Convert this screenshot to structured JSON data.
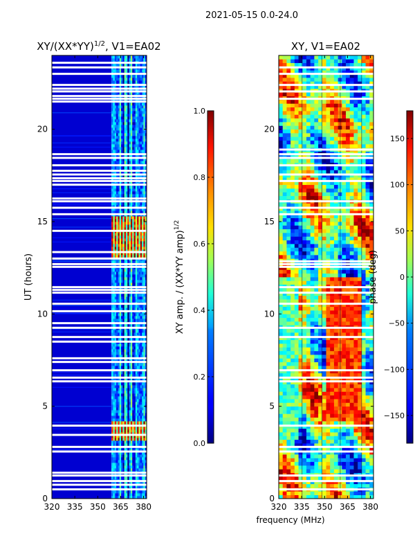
{
  "suptitle": "2021-05-15 0.0-24.0",
  "chart_data": [
    {
      "type": "heatmap",
      "title_main": "XY/(XX*YY)",
      "title_exp": "1/2",
      "title_suffix": ", V1=EA02",
      "xlabel": "",
      "ylabel": "UT (hours)",
      "xlim": [
        320,
        382
      ],
      "ylim": [
        0,
        24
      ],
      "xticks": [
        320,
        335,
        350,
        365,
        380
      ],
      "yticks": [
        0,
        5,
        10,
        15,
        20
      ],
      "colorbar": {
        "range": [
          0.0,
          1.0
        ],
        "ticks": [
          "0.0",
          "0.2",
          "0.4",
          "0.6",
          "0.8",
          "1.0"
        ],
        "tick_values": [
          0.0,
          0.2,
          0.4,
          0.6,
          0.8,
          1.0
        ],
        "label_main": "XY amp. / (XX*YY amp)",
        "label_exp": "1/2"
      },
      "bands": [
        {
          "freq": [
            320,
            359
          ],
          "level": 0.08,
          "desc": "low-amplitude region"
        },
        {
          "freq": [
            359,
            382
          ],
          "level": 0.35,
          "desc": "channel stripes 0.25-0.45"
        },
        {
          "freq": [
            359,
            382
          ],
          "time": [
            13.0,
            15.2
          ],
          "level": 0.85,
          "desc": "high-amplitude burst"
        },
        {
          "freq": [
            359,
            382
          ],
          "time": [
            3.1,
            4.1
          ],
          "level": 0.8,
          "desc": "high-amplitude burst"
        }
      ],
      "gaps_hours": [
        0.5,
        0.75,
        0.95,
        1.25,
        1.4,
        2.55,
        2.8,
        3.45,
        3.95,
        6.35,
        6.55,
        6.95,
        7.4,
        7.6,
        8.5,
        8.75,
        9.25,
        9.5,
        10.15,
        10.55,
        11.15,
        11.3,
        11.45,
        12.55,
        12.7,
        13.0,
        13.35,
        14.5,
        15.4,
        15.75,
        16.1,
        16.25,
        17.0,
        17.2,
        17.35,
        17.55,
        17.75,
        18.05,
        18.45,
        18.65,
        21.5,
        21.65,
        21.8,
        22.05,
        22.2,
        22.4,
        23.0,
        23.35,
        23.6
      ]
    },
    {
      "type": "heatmap",
      "title": "XY, V1=EA02",
      "xlabel": "frequency (MHz)",
      "ylabel": "",
      "xlim": [
        320,
        382
      ],
      "ylim": [
        0,
        24
      ],
      "xticks": [
        320,
        335,
        350,
        365,
        380
      ],
      "yticks": [
        0,
        5,
        10,
        15,
        20
      ],
      "colorbar": {
        "range": [
          -180,
          180
        ],
        "ticks": [
          "150",
          "100",
          "50",
          "0",
          "−50",
          "−100",
          "−150"
        ],
        "tick_values": [
          150,
          100,
          50,
          0,
          -50,
          -100,
          -150
        ],
        "label": "phase (deg)"
      },
      "gaps_hours": [
        0.5,
        0.95,
        1.25,
        2.55,
        2.8,
        3.95,
        6.35,
        6.55,
        6.95,
        8.75,
        9.25,
        10.55,
        11.15,
        11.45,
        12.55,
        12.7,
        12.85,
        15.4,
        15.75,
        16.1,
        17.2,
        17.55,
        18.05,
        18.45,
        18.65,
        18.9,
        21.65,
        22.05,
        22.4,
        23.0,
        23.35
      ]
    }
  ]
}
